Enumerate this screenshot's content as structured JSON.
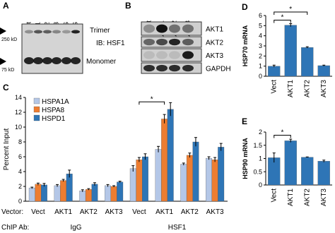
{
  "chart_data": [
    {
      "type": "bar",
      "label": "C",
      "ylabel": "Percent Input",
      "categories": [
        "Vect",
        "AKT1",
        "AKT2",
        "AKT3",
        "Vect",
        "AKT1",
        "AKT2",
        "AKT3"
      ],
      "x_row_label": "Vector:",
      "groups_label": "ChIP Ab:",
      "groups": [
        "IgG",
        "HSF1"
      ],
      "annotations": [
        "*"
      ],
      "legend": "top-left",
      "series": [
        {
          "name": "HSPA1A",
          "color": "#b4c7e7",
          "values": [
            1.8,
            2.1,
            1.4,
            2.1,
            4.4,
            7.0,
            5.0,
            5.8
          ],
          "errors": [
            0.1,
            0.15,
            0.15,
            0.15,
            0.4,
            0.4,
            0.15,
            0.2
          ]
        },
        {
          "name": "HSPA8",
          "color": "#ed7d31",
          "values": [
            2.3,
            2.8,
            1.6,
            2.0,
            5.6,
            11.1,
            6.2,
            5.6
          ],
          "errors": [
            0.15,
            0.15,
            0.1,
            0.1,
            0.3,
            0.6,
            0.3,
            0.3
          ]
        },
        {
          "name": "HSPD1",
          "color": "#2e75b6",
          "values": [
            2.2,
            3.7,
            2.3,
            2.6,
            6.0,
            12.4,
            8.0,
            7.3
          ],
          "errors": [
            0.2,
            0.5,
            0.2,
            0.1,
            0.4,
            0.9,
            0.6,
            0.5
          ]
        }
      ],
      "ylim": [
        0,
        14
      ],
      "yticks": [
        0,
        2,
        4,
        6,
        8,
        10,
        12,
        14
      ]
    },
    {
      "type": "bar",
      "label": "D",
      "ylabel": "HSP70 mRNA",
      "categories": [
        "Vect",
        "AKT1",
        "AKT2",
        "AKT3"
      ],
      "color": "#2e75b6",
      "values": [
        1.0,
        5.05,
        2.85,
        1.05
      ],
      "errors": [
        0.1,
        0.15,
        0.07,
        0.05
      ],
      "annotations": [
        "*",
        "*"
      ],
      "ylim": [
        0,
        6
      ],
      "yticks": [
        0,
        1,
        2,
        3,
        4,
        5,
        6
      ]
    },
    {
      "type": "bar",
      "label": "E",
      "ylabel": "HSP90 mRNA",
      "categories": [
        "Vect",
        "AKT1",
        "AKT2",
        "AKT3"
      ],
      "color": "#2e75b6",
      "values": [
        1.03,
        1.67,
        1.05,
        0.9
      ],
      "errors": [
        0.18,
        0.06,
        0.01,
        0.04
      ],
      "annotations": [
        "*"
      ],
      "ylim": [
        0,
        2
      ],
      "yticks": [
        0,
        0.5,
        1,
        1.5,
        2
      ]
    }
  ],
  "blot_a": {
    "label": "A",
    "lanes": [
      "Vect",
      "AKT1",
      "AKT2",
      "AKT3",
      "-HS",
      "+HS"
    ],
    "markers": [
      "250 kD",
      "75 kD"
    ],
    "bands": [
      "Trimer",
      "IB: HSF1",
      "Monomer"
    ]
  },
  "blot_b": {
    "label": "B",
    "lanes": [
      "Vect",
      "AKT1",
      "AKT2",
      "AKT3"
    ],
    "rows": [
      "AKT1",
      "AKT2",
      "AKT3",
      "GAPDH"
    ]
  }
}
